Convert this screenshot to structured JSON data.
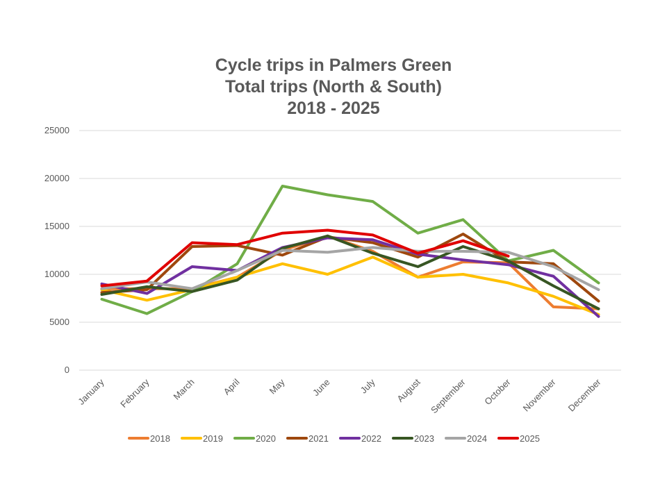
{
  "chart_data": {
    "type": "line",
    "title_lines": [
      "Cycle trips in Palmers Green",
      "Total trips (North & South)",
      "2018 - 2025"
    ],
    "categories": [
      "January",
      "February",
      "March",
      "April",
      "May",
      "June",
      "July",
      "August",
      "September",
      "October",
      "November",
      "December"
    ],
    "ylim": [
      0,
      25000
    ],
    "yticks": [
      0,
      5000,
      10000,
      15000,
      20000,
      25000
    ],
    "grid": true,
    "legend_position": "bottom",
    "series": [
      {
        "name": "2018",
        "color": "#ED7D31",
        "values": [
          8500,
          8500,
          8500,
          9700,
          12500,
          14000,
          12400,
          9700,
          11300,
          11200,
          6600,
          6400
        ]
      },
      {
        "name": "2019",
        "color": "#FFC000",
        "values": [
          8400,
          7300,
          8400,
          9700,
          11100,
          10000,
          11800,
          9700,
          10000,
          9100,
          7700,
          5800
        ]
      },
      {
        "name": "2020",
        "color": "#70AD47",
        "values": [
          7400,
          5900,
          8200,
          11100,
          19200,
          18300,
          17600,
          14300,
          15700,
          11400,
          12500,
          9100
        ]
      },
      {
        "name": "2021",
        "color": "#9E480E",
        "values": [
          8100,
          8400,
          12900,
          13000,
          12000,
          13900,
          13300,
          11800,
          14200,
          11300,
          11100,
          7200
        ]
      },
      {
        "name": "2022",
        "color": "#7030A0",
        "values": [
          9000,
          8000,
          10800,
          10400,
          12800,
          13800,
          13600,
          12100,
          11500,
          11000,
          9800,
          5600
        ]
      },
      {
        "name": "2023",
        "color": "#375623",
        "values": [
          7900,
          8700,
          8200,
          9400,
          12700,
          14000,
          12200,
          10800,
          12900,
          11400,
          8800,
          6400
        ]
      },
      {
        "name": "2024",
        "color": "#A5A5A5",
        "values": [
          8500,
          9200,
          8500,
          10400,
          12500,
          12300,
          12800,
          12400,
          12400,
          12300,
          10800,
          8400
        ]
      },
      {
        "name": "2025",
        "color": "#E00000",
        "values": [
          8800,
          9300,
          13300,
          13100,
          14300,
          14600,
          14100,
          12200,
          13500,
          11900,
          null,
          null
        ]
      }
    ]
  }
}
